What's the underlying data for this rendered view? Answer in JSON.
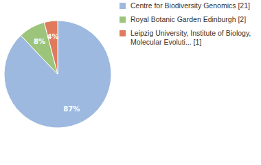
{
  "chart_data": {
    "type": "pie",
    "categories": [
      "Centre for Biodiversity Genomics [21]",
      "Royal Botanic Garden Edinburgh [2]",
      "Leipzig University, Institute of Biology, Molecular Evoluti... [1]"
    ],
    "values": [
      87,
      8,
      4
    ],
    "value_labels": [
      "87%",
      "8%",
      "4%"
    ],
    "colors": [
      "#9db9e0",
      "#9dc47b",
      "#e07a5c"
    ],
    "data_labels": true,
    "legend": "top-right"
  }
}
